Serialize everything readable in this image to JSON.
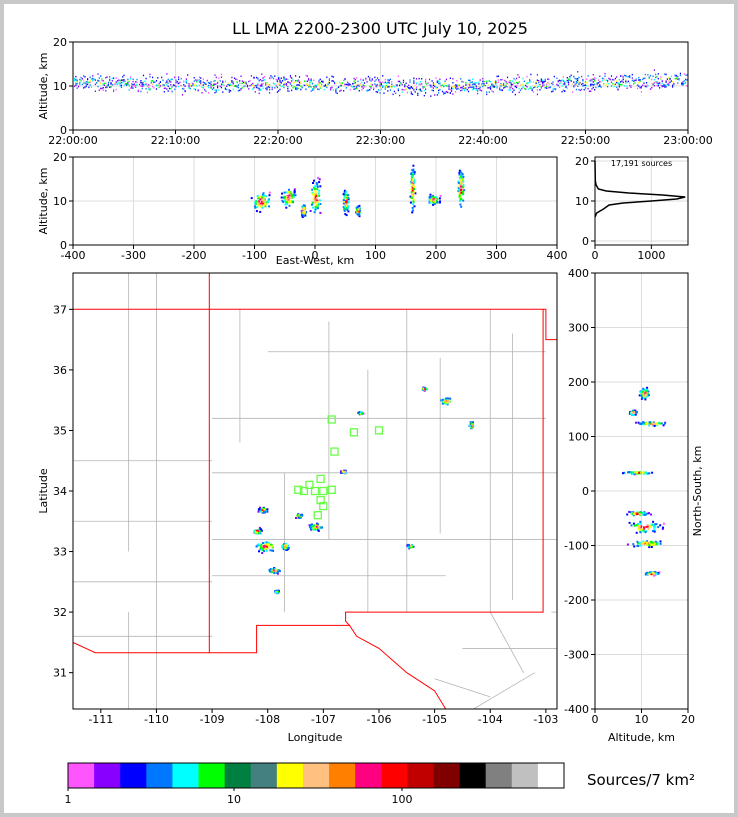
{
  "title": "LL LMA 2200-2300 UTC July 10, 2025",
  "colors": {
    "scale": [
      "#ff55ff",
      "#8800ff",
      "#0000ff",
      "#0077ff",
      "#00ffff",
      "#00ff00",
      "#008040",
      "#448080",
      "#ffff00",
      "#ffc080",
      "#ff8000",
      "#ff0080",
      "#ff0000",
      "#c00000",
      "#800000",
      "#000000",
      "#808080",
      "#c0c0c0",
      "#ffffff"
    ],
    "state_border": "#ff0000",
    "county_lines": "#b4b4b4",
    "stations": "#66ff44",
    "grid": "#dddddd"
  },
  "colorbar": {
    "tick_labels": [
      "1",
      "10",
      "100"
    ],
    "tick_values": [
      1,
      10,
      100
    ],
    "label": "Sources/7 km²"
  },
  "chart_data": [
    {
      "id": "altitude_time",
      "type": "scatter",
      "ylabel": "Altitude, km",
      "x_tick_labels": [
        "22:00:00",
        "22:10:00",
        "22:20:00",
        "22:30:00",
        "22:40:00",
        "22:50:00",
        "23:00:00"
      ],
      "xlim": [
        "22:00:00",
        "23:00:00"
      ],
      "ylim": [
        0,
        20
      ],
      "y_ticks": [
        0,
        10,
        20
      ],
      "band_km": [
        8,
        13
      ],
      "center_km": [
        11,
        10.5,
        10.5,
        10.5,
        10,
        10.5,
        11,
        11.5
      ]
    },
    {
      "id": "altitude_eastwest",
      "type": "scatter",
      "xlabel": "East-West, km",
      "ylabel": "Altitude, km",
      "xlim": [
        -400,
        400
      ],
      "ylim": [
        0,
        20
      ],
      "x_ticks": [
        -400,
        -300,
        -200,
        -100,
        0,
        100,
        200,
        300,
        400
      ],
      "y_ticks": [
        0,
        10,
        20
      ],
      "clusters": [
        {
          "x": -90,
          "alt": 10,
          "w": 40,
          "h": 6
        },
        {
          "x": -45,
          "alt": 11,
          "w": 30,
          "h": 6
        },
        {
          "x": 0,
          "alt": 11,
          "w": 25,
          "h": 10
        },
        {
          "x": -20,
          "alt": 8,
          "w": 10,
          "h": 4
        },
        {
          "x": 50,
          "alt": 10,
          "w": 12,
          "h": 8
        },
        {
          "x": 70,
          "alt": 8,
          "w": 10,
          "h": 3
        },
        {
          "x": 160,
          "alt": 13,
          "w": 10,
          "h": 14
        },
        {
          "x": 195,
          "alt": 10.5,
          "w": 25,
          "h": 3
        },
        {
          "x": 240,
          "alt": 13,
          "w": 15,
          "h": 12
        }
      ]
    },
    {
      "id": "altitude_histogram",
      "type": "line",
      "annotation": "17,191 sources",
      "xlim": [
        0,
        1650
      ],
      "ylim": [
        -1,
        21
      ],
      "x_ticks": [
        0,
        1000
      ],
      "y_ticks": [
        0,
        10,
        20
      ],
      "alt": [
        6,
        7,
        8,
        9,
        9.5,
        10,
        10.5,
        11,
        11.5,
        12,
        12.5,
        13,
        14,
        15,
        20
      ],
      "count": [
        0,
        30,
        150,
        250,
        500,
        1000,
        1450,
        1600,
        1200,
        600,
        200,
        60,
        20,
        5,
        0
      ]
    },
    {
      "id": "plan_view_map",
      "type": "scatter",
      "xlabel": "Longitude",
      "ylabel": "Latitude",
      "xlim": [
        -111.5,
        -102.8
      ],
      "ylim": [
        30.4,
        37.6
      ],
      "x_ticks": [
        -111,
        -110,
        -109,
        -108,
        -107,
        -106,
        -105,
        -104,
        -103
      ],
      "y_ticks": [
        31,
        32,
        33,
        34,
        35,
        36,
        37
      ],
      "stations": [
        {
          "lon": -106.85,
          "lat": 35.18
        },
        {
          "lon": -106.45,
          "lat": 34.97
        },
        {
          "lon": -106.0,
          "lat": 35.0
        },
        {
          "lon": -106.8,
          "lat": 34.65
        },
        {
          "lon": -107.05,
          "lat": 34.2
        },
        {
          "lon": -107.25,
          "lat": 34.1
        },
        {
          "lon": -107.35,
          "lat": 34.0
        },
        {
          "lon": -107.15,
          "lat": 34.0
        },
        {
          "lon": -107.0,
          "lat": 34.0
        },
        {
          "lon": -106.85,
          "lat": 34.02
        },
        {
          "lon": -107.05,
          "lat": 33.85
        },
        {
          "lon": -107.0,
          "lat": 33.75
        },
        {
          "lon": -107.1,
          "lat": 33.6
        },
        {
          "lon": -107.45,
          "lat": 34.02
        }
      ],
      "clusters": [
        {
          "lon": -108.05,
          "lat": 33.1,
          "w": 0.5,
          "h": 0.25
        },
        {
          "lon": -108.2,
          "lat": 33.35,
          "w": 0.2,
          "h": 0.15
        },
        {
          "lon": -108.1,
          "lat": 33.7,
          "w": 0.2,
          "h": 0.12
        },
        {
          "lon": -107.7,
          "lat": 33.1,
          "w": 0.2,
          "h": 0.15
        },
        {
          "lon": -107.9,
          "lat": 32.7,
          "w": 0.3,
          "h": 0.12
        },
        {
          "lon": -107.15,
          "lat": 33.42,
          "w": 0.3,
          "h": 0.15
        },
        {
          "lon": -107.45,
          "lat": 33.6,
          "w": 0.15,
          "h": 0.1
        },
        {
          "lon": -106.65,
          "lat": 34.33,
          "w": 0.12,
          "h": 0.06
        },
        {
          "lon": -105.45,
          "lat": 33.1,
          "w": 0.15,
          "h": 0.08
        },
        {
          "lon": -104.8,
          "lat": 35.5,
          "w": 0.3,
          "h": 0.15
        },
        {
          "lon": -105.2,
          "lat": 35.7,
          "w": 0.12,
          "h": 0.06
        },
        {
          "lon": -104.35,
          "lat": 35.1,
          "w": 0.12,
          "h": 0.15
        },
        {
          "lon": -106.35,
          "lat": 35.3,
          "w": 0.12,
          "h": 0.05
        },
        {
          "lon": -107.85,
          "lat": 32.35,
          "w": 0.1,
          "h": 0.06
        }
      ]
    },
    {
      "id": "northsouth_altitude",
      "type": "scatter",
      "xlabel": "Altitude, km",
      "ylabel": "North-South, km",
      "xlim": [
        0,
        20
      ],
      "ylim": [
        -400,
        400
      ],
      "x_ticks": [
        0,
        10,
        20
      ],
      "y_ticks": [
        -400,
        -300,
        -200,
        -100,
        0,
        100,
        200,
        300,
        400
      ],
      "clusters": [
        {
          "ns": 180,
          "alt": 10.5,
          "w": 3,
          "h": 30
        },
        {
          "ns": 145,
          "alt": 8,
          "w": 2,
          "h": 12
        },
        {
          "ns": 125,
          "alt": 12,
          "w": 8,
          "h": 10
        },
        {
          "ns": 35,
          "alt": 9,
          "w": 8,
          "h": 6
        },
        {
          "ns": -40,
          "alt": 9,
          "w": 6,
          "h": 10
        },
        {
          "ns": -65,
          "alt": 10.5,
          "w": 9,
          "h": 30
        },
        {
          "ns": -95,
          "alt": 11,
          "w": 10,
          "h": 15
        },
        {
          "ns": -150,
          "alt": 12,
          "w": 4,
          "h": 8
        }
      ]
    }
  ]
}
